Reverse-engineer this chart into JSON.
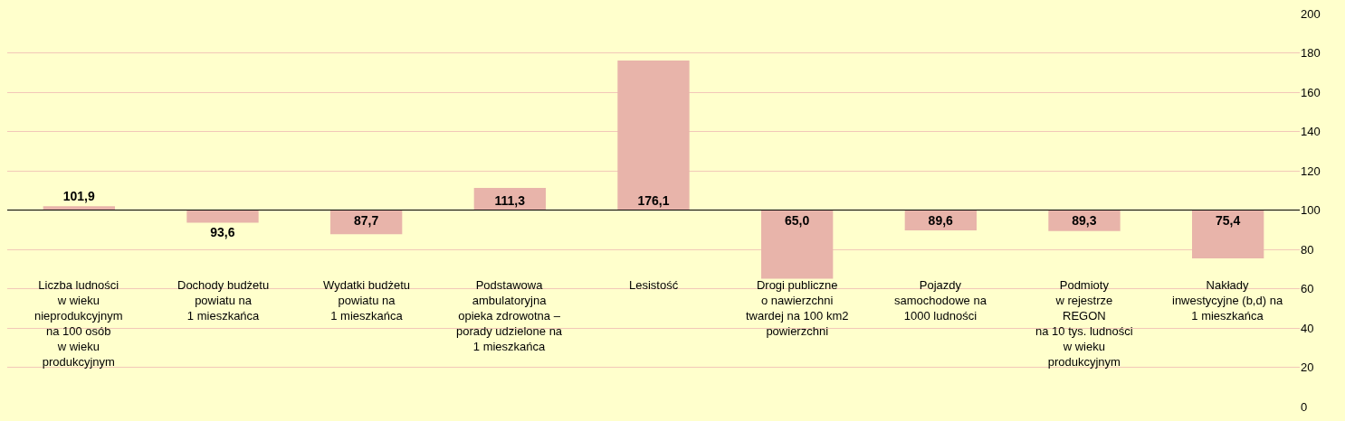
{
  "chart_data": {
    "type": "bar",
    "categories": [
      "Liczba ludności\nw wieku\nnieprodukcyjnym\nna 100 osób\nw wieku\nprodukcyjnym",
      "Dochody budżetu\npowiatu na\n1 mieszkańca",
      "Wydatki budżetu\npowiatu na\n1 mieszkańca",
      "Podstawowa\nambulatoryjna\nopieka zdrowotna –\nporady udzielone na\n1 mieszkańca",
      "Lesistość",
      "Drogi publiczne\no nawierzchni\ntwardej na 100 km2\npowierzchni",
      "Pojazdy\nsamochodowe na\n1000 ludności",
      "Podmioty\nw rejestrze\nREGON\nna 10 tys. ludności\nw wieku\nprodukcyjnym",
      "Nakłady\ninwestycyjne (b,d) na\n1 mieszkańca"
    ],
    "base": [
      100,
      100,
      100,
      100,
      100,
      100,
      100,
      100,
      100
    ],
    "values": [
      1.9,
      -6.4,
      -12.3,
      11.3,
      76.1,
      -35.0,
      -10.4,
      -10.7,
      -24.6
    ],
    "value_labels": [
      "101,9",
      "93,6",
      "87,7",
      "111,3",
      "176,1",
      "65,0",
      "89,6",
      "89,3",
      "75,4"
    ],
    "color": "#e8b4aa",
    "ylim": [
      0,
      200
    ],
    "yticks": [
      0,
      20,
      40,
      60,
      80,
      100,
      120,
      140,
      160,
      180,
      200
    ],
    "ref_lines": [
      {
        "axis": "y",
        "value": 100,
        "color": "#000000"
      }
    ],
    "grid": "y",
    "legend": false
  }
}
